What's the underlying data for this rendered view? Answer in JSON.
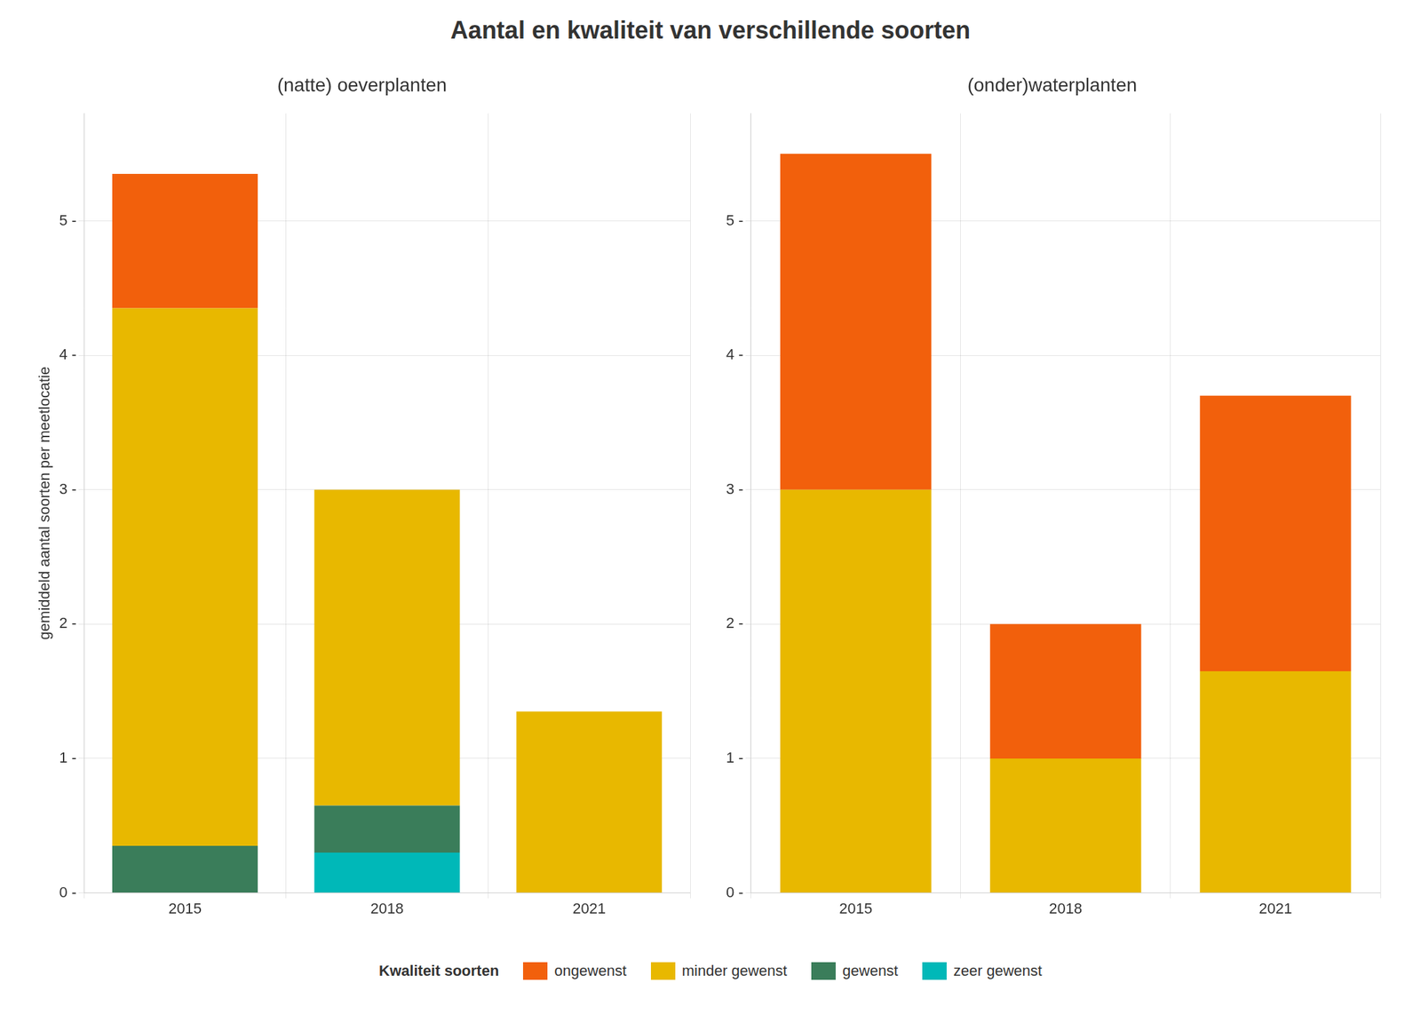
{
  "title": "Aantal en kwaliteit van verschillende soorten",
  "legend_title": "Kwaliteit soorten",
  "chart_data": [
    {
      "type": "bar",
      "title": "(natte) oeverplanten",
      "ylabel": "gemiddeld aantal soorten per meetlocatie",
      "categories": [
        "2015",
        "2018",
        "2021"
      ],
      "series": [
        {
          "name": "zeer gewenst",
          "color": "#00B8B8",
          "values": [
            0.0,
            0.3,
            0.0
          ]
        },
        {
          "name": "gewenst",
          "color": "#3A7D5A",
          "values": [
            0.35,
            0.35,
            0.0
          ]
        },
        {
          "name": "minder gewenst",
          "color": "#E8B800",
          "values": [
            4.0,
            2.35,
            1.35
          ]
        },
        {
          "name": "ongewenst",
          "color": "#F2600C",
          "values": [
            1.0,
            0.0,
            0.0
          ]
        }
      ],
      "stacked": true,
      "ylim": [
        0,
        5.8
      ],
      "yticks": [
        {
          "value": 0,
          "label": "0 -"
        },
        {
          "value": 1,
          "label": "1 -"
        },
        {
          "value": 2,
          "label": "2 -"
        },
        {
          "value": 3,
          "label": "3 -"
        },
        {
          "value": 4,
          "label": "4 -"
        },
        {
          "value": 5,
          "label": "5 -"
        }
      ],
      "grid": true,
      "legend": "bottom"
    },
    {
      "type": "bar",
      "title": "(onder)waterplanten",
      "categories": [
        "2015",
        "2018",
        "2021"
      ],
      "series": [
        {
          "name": "zeer gewenst",
          "color": "#00B8B8",
          "values": [
            0.0,
            0.0,
            0.0
          ]
        },
        {
          "name": "gewenst",
          "color": "#3A7D5A",
          "values": [
            0.0,
            0.0,
            0.0
          ]
        },
        {
          "name": "minder gewenst",
          "color": "#E8B800",
          "values": [
            3.0,
            1.0,
            1.65
          ]
        },
        {
          "name": "ongewenst",
          "color": "#F2600C",
          "values": [
            2.5,
            1.0,
            2.05
          ]
        }
      ],
      "stacked": true,
      "ylim": [
        0,
        5.8
      ],
      "yticks": [
        {
          "value": 0,
          "label": "0 -"
        },
        {
          "value": 1,
          "label": "1 -"
        },
        {
          "value": 2,
          "label": "2 -"
        },
        {
          "value": 3,
          "label": "3 -"
        },
        {
          "value": 4,
          "label": "4 -"
        },
        {
          "value": 5,
          "label": "5 -"
        }
      ],
      "grid": true,
      "legend": "bottom"
    }
  ]
}
